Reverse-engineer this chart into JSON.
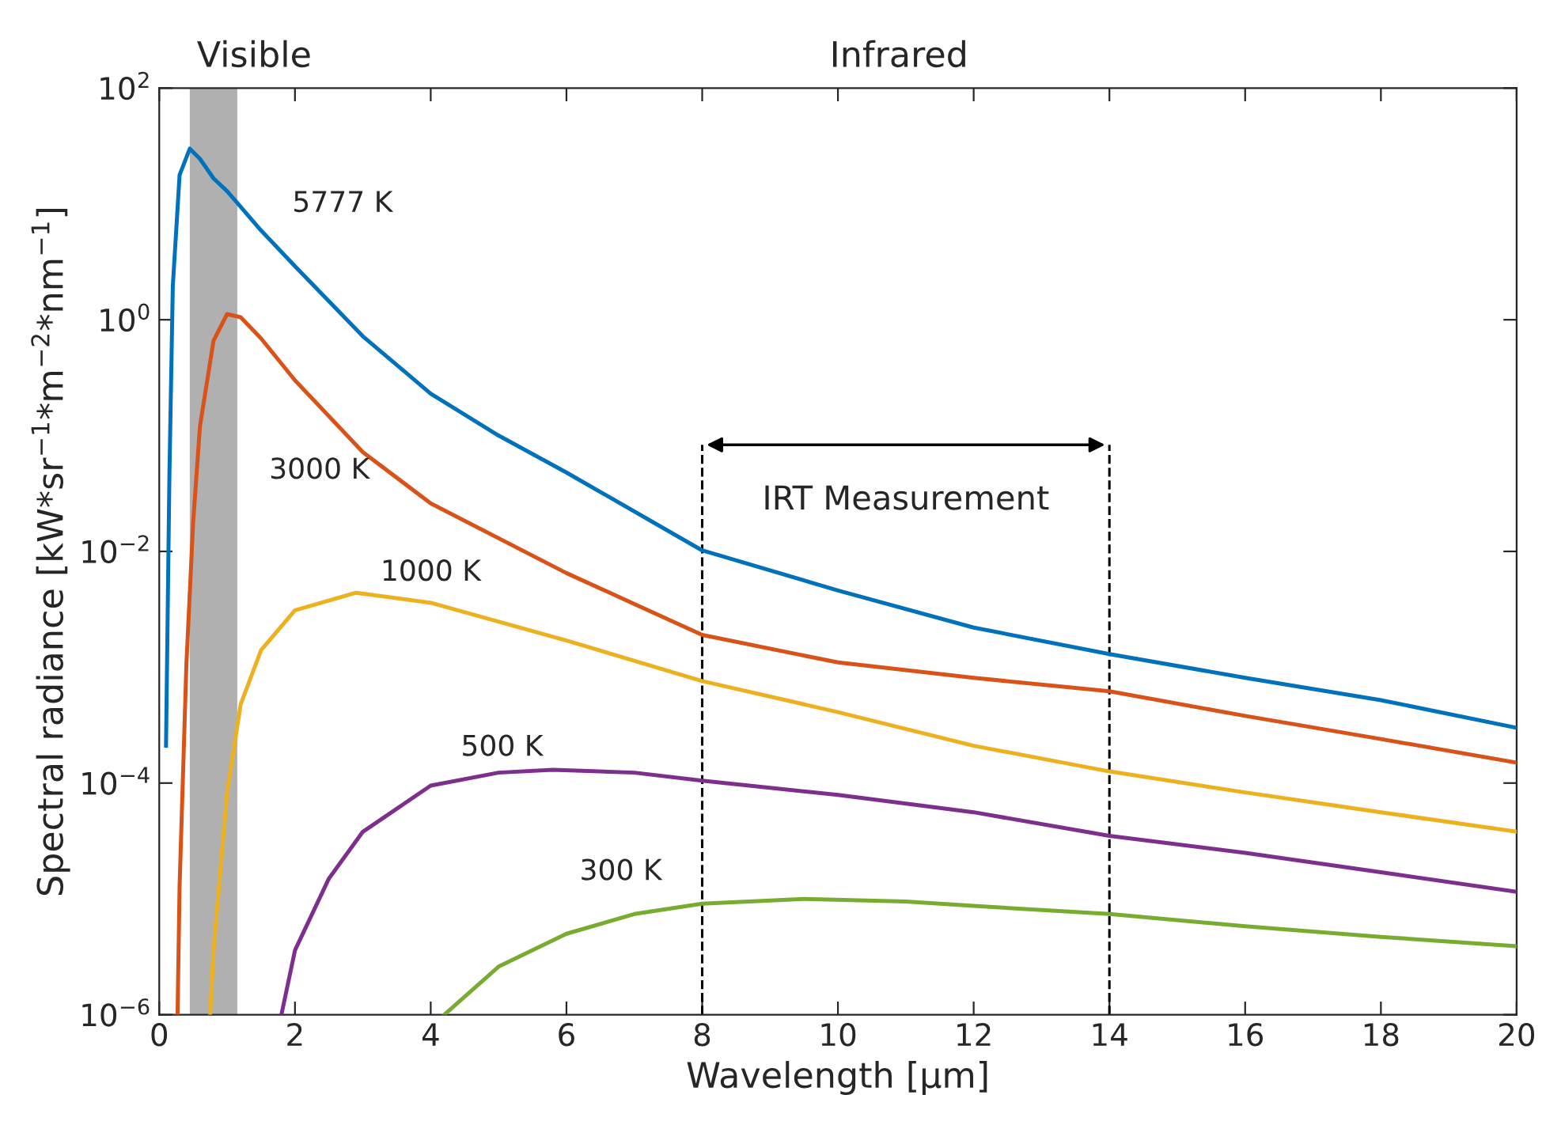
{
  "chart_data": {
    "type": "line",
    "xlabel": "Wavelength [μm]",
    "ylabel": "Spectral radiance [kW*sr$^{−1}$*m$^{−2}$*nm$^{−1}$]",
    "log": "y",
    "xlim": [
      0,
      20
    ],
    "xticks": [
      0,
      2,
      4,
      6,
      8,
      10,
      12,
      14,
      16,
      18,
      20
    ],
    "ylim": [
      1e-06,
      100
    ],
    "yticks": [
      {
        "value": 1e-06,
        "label": "10$^{−6}$"
      },
      {
        "value": 0.0001,
        "label": "10$^{−4}$"
      },
      {
        "value": 0.01,
        "label": "10$^{−2}$"
      },
      {
        "value": 1,
        "label": "10$^{0}$"
      },
      {
        "value": 100,
        "label": "10$^{2}$"
      }
    ],
    "grid": false,
    "marker": "none",
    "line_style": "solid",
    "series": [
      {
        "name": "5777 K",
        "color": "#0072bd",
        "x": [
          0.1,
          0.15,
          0.2,
          0.3,
          0.45,
          0.6,
          0.8,
          1,
          1.5,
          2,
          3,
          4,
          5,
          6,
          8,
          10,
          12,
          14,
          16,
          18,
          20
        ],
        "values": [
          0.00021,
          0.046,
          1.95,
          17.8,
          30,
          24.5,
          16.6,
          12.9,
          5.9,
          2.9,
          0.72,
          0.23,
          0.1,
          0.048,
          0.0102,
          0.0046,
          0.0022,
          0.0013,
          0.00081,
          0.00052,
          0.0003
        ]
      },
      {
        "name": "3000 K",
        "color": "#d95319",
        "x": [
          0.27,
          0.3,
          0.4,
          0.5,
          0.6,
          0.8,
          1,
          1.2,
          1.5,
          2,
          3,
          4,
          6,
          8,
          10,
          12,
          14,
          16,
          18,
          20
        ],
        "values": [
          1e-06,
          1.3e-05,
          0.00105,
          0.018,
          0.12,
          0.66,
          1.12,
          1.05,
          0.69,
          0.3,
          0.072,
          0.026,
          0.0065,
          0.0019,
          0.0011,
          0.00081,
          0.00062,
          0.00038,
          0.00024,
          0.00015
        ]
      },
      {
        "name": "1000 K",
        "color": "#edb120",
        "x": [
          0.75,
          0.8,
          1,
          1.2,
          1.5,
          2,
          2.9,
          4,
          6,
          8,
          10,
          12,
          14,
          16,
          18,
          20
        ],
        "values": [
          1e-06,
          3.6e-06,
          8.3e-05,
          0.00048,
          0.0014,
          0.0031,
          0.0044,
          0.0036,
          0.0017,
          0.00076,
          0.00041,
          0.00021,
          0.000126,
          8.3e-05,
          5.6e-05,
          3.8e-05
        ]
      },
      {
        "name": "500 K",
        "color": "#7e2f8e",
        "x": [
          1.8,
          2,
          2.5,
          3,
          4,
          5,
          5.8,
          7,
          8,
          10,
          12,
          14,
          16,
          18,
          20
        ],
        "values": [
          1e-06,
          3.6e-06,
          1.5e-05,
          3.8e-05,
          9.5e-05,
          0.000123,
          0.00013,
          0.000123,
          0.000105,
          7.9e-05,
          5.6e-05,
          3.5e-05,
          2.5e-05,
          1.7e-05,
          1.15e-05
        ]
      },
      {
        "name": "300 K",
        "color": "#77ac30",
        "x": [
          4.2,
          5,
          6,
          7,
          8,
          9.5,
          11,
          12,
          14,
          16,
          18,
          20
        ],
        "values": [
          1e-06,
          2.6e-06,
          5e-06,
          7.4e-06,
          9.1e-06,
          1e-05,
          9.5e-06,
          8.7e-06,
          7.4e-06,
          5.8e-06,
          4.7e-06,
          3.9e-06
        ]
      }
    ],
    "bands": [
      {
        "axis": "x",
        "from": 0.45,
        "to": 1.15,
        "color": "#b0b0b0"
      }
    ],
    "ref_lines": [
      {
        "axis": "x",
        "value": 8,
        "color": "#000000",
        "line_style": "dashed"
      },
      {
        "axis": "x",
        "value": 14,
        "color": "#000000",
        "line_style": "dashed"
      }
    ],
    "annotations": [
      "IRT Measurement",
      "Visible",
      "Infrared"
    ]
  }
}
